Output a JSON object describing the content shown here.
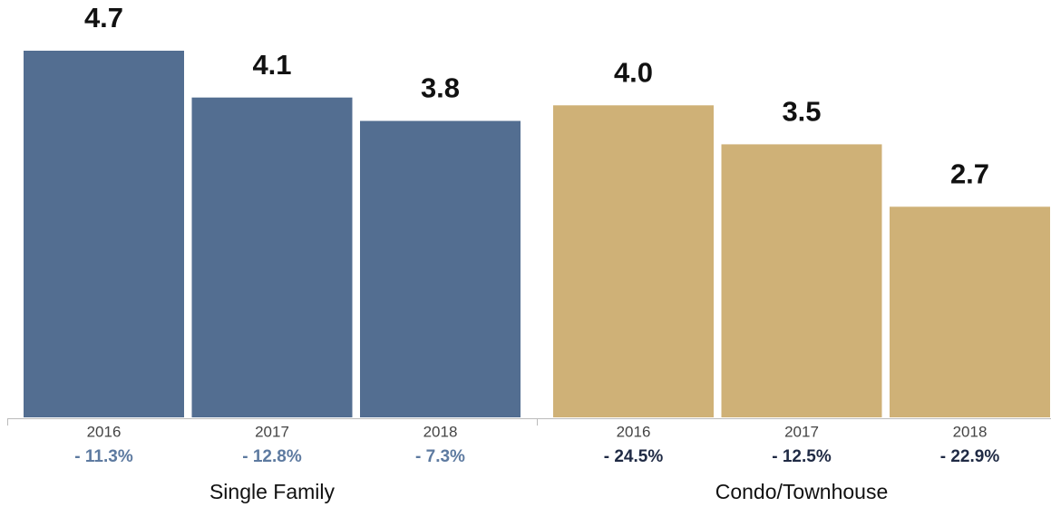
{
  "chart_data": [
    {
      "type": "bar",
      "title": "Single Family",
      "categories": [
        "2016",
        "2017",
        "2018"
      ],
      "values": [
        4.7,
        4.1,
        3.8
      ],
      "value_labels": [
        "4.7",
        "4.1",
        "3.8"
      ],
      "change_labels": [
        "- 11.3%",
        "- 12.8%",
        "- 7.3%"
      ],
      "color": "#536e91",
      "change_color": "#5d7aa0"
    },
    {
      "type": "bar",
      "title": "Condo/Townhouse",
      "categories": [
        "2016",
        "2017",
        "2018"
      ],
      "values": [
        4.0,
        3.5,
        2.7
      ],
      "value_labels": [
        "4.0",
        "3.5",
        "2.7"
      ],
      "change_labels": [
        "- 24.5%",
        "- 12.5%",
        "- 22.9%"
      ],
      "color": "#cfb177",
      "change_color": "#1f2a44"
    }
  ]
}
